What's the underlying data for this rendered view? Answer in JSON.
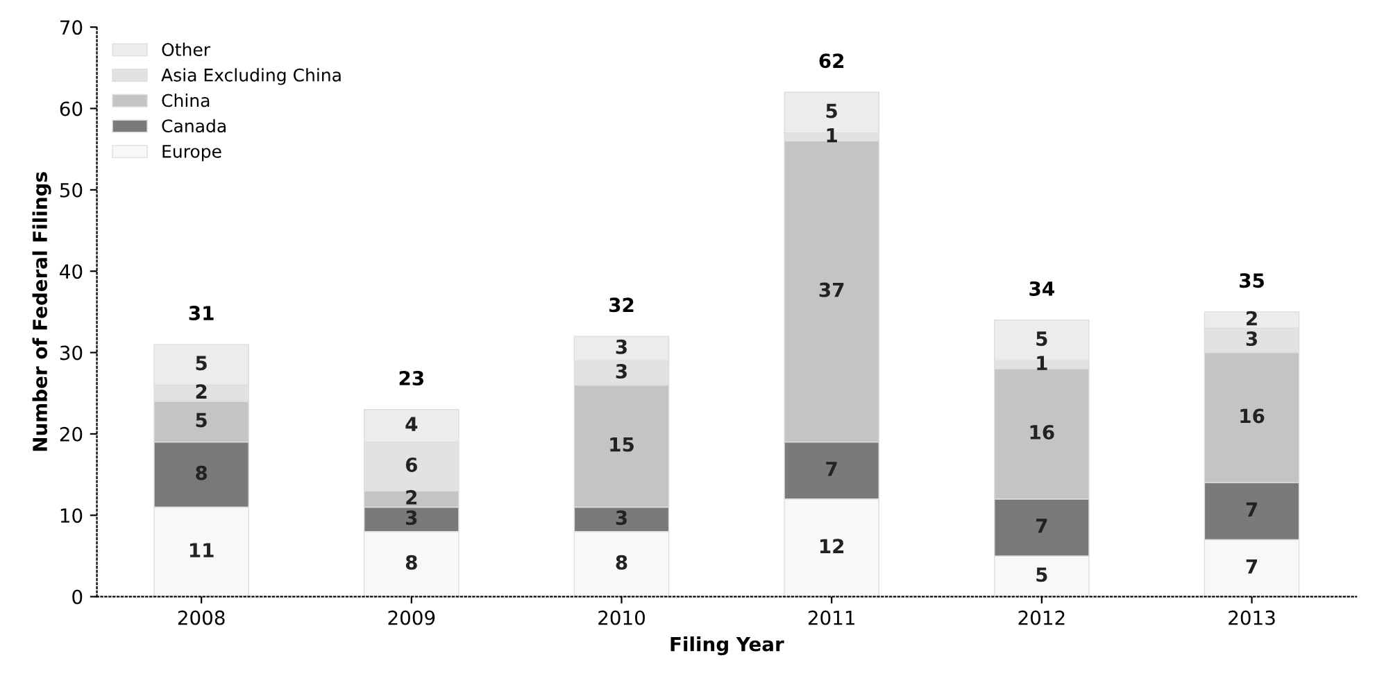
{
  "chart_data": {
    "type": "bar",
    "stacked": true,
    "xlabel": "Filing Year",
    "ylabel": "Number of Federal Filings",
    "categories": [
      "2008",
      "2009",
      "2010",
      "2011",
      "2012",
      "2013"
    ],
    "series": [
      {
        "name": "Europe",
        "color": "#f8f8f8",
        "values": [
          11,
          8,
          8,
          12,
          5,
          7
        ]
      },
      {
        "name": "Canada",
        "color": "#7a7a7a",
        "values": [
          8,
          3,
          3,
          7,
          7,
          7
        ]
      },
      {
        "name": "China",
        "color": "#c4c4c4",
        "values": [
          5,
          2,
          15,
          37,
          16,
          16
        ]
      },
      {
        "name": "Asia Excluding China",
        "color": "#e2e2e2",
        "values": [
          2,
          6,
          3,
          1,
          1,
          3
        ]
      },
      {
        "name": "Other",
        "color": "#ececec",
        "values": [
          5,
          4,
          3,
          5,
          5,
          2
        ]
      }
    ],
    "totals": [
      "31",
      "23",
      "32",
      "62",
      "34",
      "35"
    ],
    "data_labels": true,
    "ylim": [
      0,
      70
    ],
    "yticks": [
      0,
      10,
      20,
      30,
      40,
      50,
      60,
      70
    ],
    "grid": false,
    "legend": "top left"
  }
}
